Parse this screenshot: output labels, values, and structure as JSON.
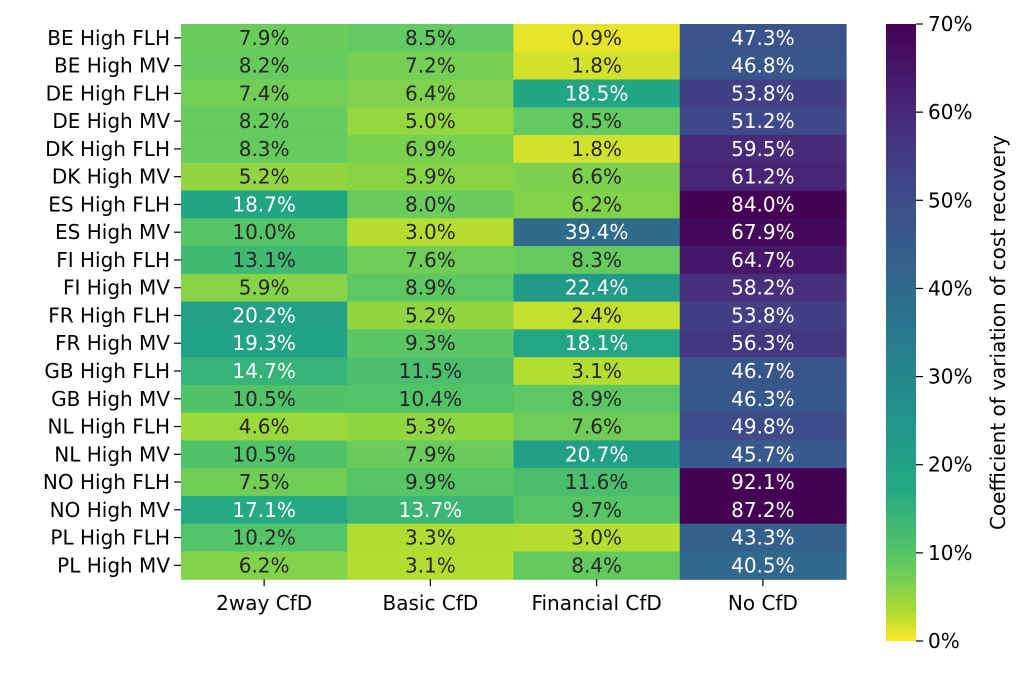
{
  "chart_data": {
    "type": "heatmap",
    "title": "",
    "xlabel": "",
    "ylabel": "",
    "columns": [
      "2way CfD",
      "Basic CfD",
      "Financial CfD",
      "No CfD"
    ],
    "rows": [
      "BE High FLH",
      "BE High MV",
      "DE High FLH",
      "DE High MV",
      "DK High FLH",
      "DK High MV",
      "ES High FLH",
      "ES High MV",
      "FI High FLH",
      "FI High MV",
      "FR High FLH",
      "FR High MV",
      "GB High FLH",
      "GB High MV",
      "NL High FLH",
      "NL High MV",
      "NO High FLH",
      "NO High MV",
      "PL High FLH",
      "PL High MV"
    ],
    "values": [
      [
        7.9,
        8.5,
        0.9,
        47.3
      ],
      [
        8.2,
        7.2,
        1.8,
        46.8
      ],
      [
        7.4,
        6.4,
        18.5,
        53.8
      ],
      [
        8.2,
        5.0,
        8.5,
        51.2
      ],
      [
        8.3,
        6.9,
        1.8,
        59.5
      ],
      [
        5.2,
        5.9,
        6.6,
        61.2
      ],
      [
        18.7,
        8.0,
        6.2,
        84.0
      ],
      [
        10.0,
        3.0,
        39.4,
        67.9
      ],
      [
        13.1,
        7.6,
        8.3,
        64.7
      ],
      [
        5.9,
        8.9,
        22.4,
        58.2
      ],
      [
        20.2,
        5.2,
        2.4,
        53.8
      ],
      [
        19.3,
        9.3,
        18.1,
        56.3
      ],
      [
        14.7,
        11.5,
        3.1,
        46.7
      ],
      [
        10.5,
        10.4,
        8.9,
        46.3
      ],
      [
        4.6,
        5.3,
        7.6,
        49.8
      ],
      [
        10.5,
        7.9,
        20.7,
        45.7
      ],
      [
        7.5,
        9.9,
        11.6,
        92.1
      ],
      [
        17.1,
        13.7,
        9.7,
        87.2
      ],
      [
        10.2,
        3.3,
        3.0,
        43.3
      ],
      [
        6.2,
        3.1,
        8.4,
        40.5
      ]
    ],
    "value_format": "percent",
    "colormap": "viridis_r",
    "colorbar": {
      "label": "Coefficient of variation of cost recovery",
      "range": [
        0,
        70
      ],
      "ticks": [
        0,
        10,
        20,
        30,
        40,
        50,
        60,
        70
      ],
      "tick_labels": [
        "0%",
        "10%",
        "20%",
        "30%",
        "40%",
        "50%",
        "60%",
        "70%"
      ]
    }
  }
}
